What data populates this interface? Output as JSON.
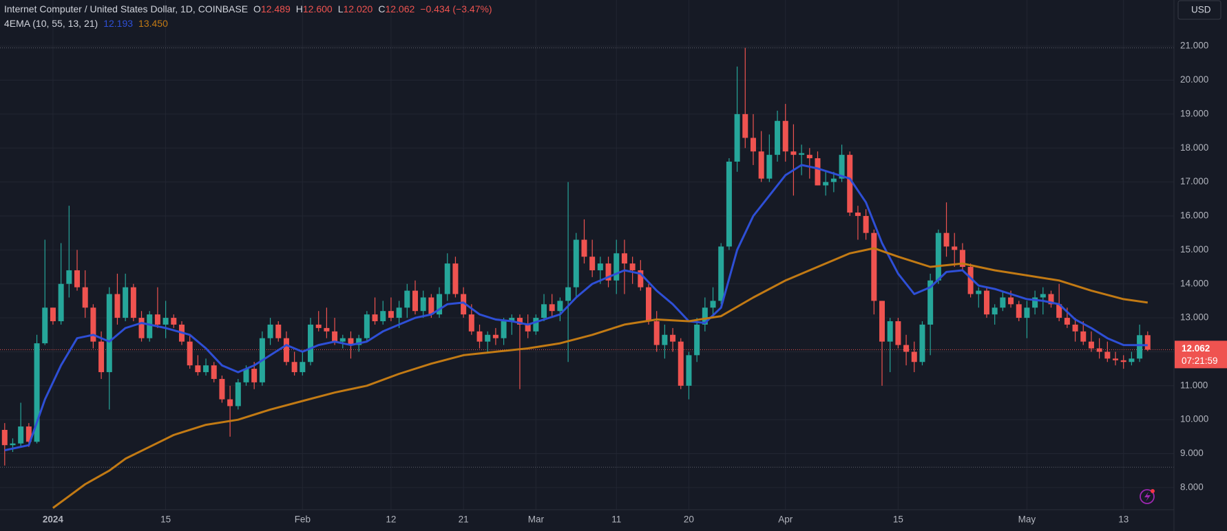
{
  "header": {
    "symbol": "Internet Computer / United States Dollar, 1D, COINBASE",
    "open_label": "O",
    "open": "12.489",
    "high_label": "H",
    "high": "12.600",
    "low_label": "L",
    "low": "12.020",
    "close_label": "C",
    "close": "12.062",
    "change": "−0.434 (−3.47%)",
    "indicator": "4EMA (10, 55, 13, 21)",
    "indicator_values": [
      "12.193",
      "13.450"
    ],
    "currency": "USD",
    "price_label": "12.062",
    "countdown": "07:21:59"
  },
  "chart_data": {
    "type": "candlestick",
    "up_color": "#26a69a",
    "down_color": "#ef5350",
    "grid": true,
    "ylim": [
      7.35,
      22.36
    ],
    "yticks": [
      {
        "value": 8,
        "label": "8.000"
      },
      {
        "value": 9,
        "label": "9.000"
      },
      {
        "value": 10,
        "label": "10.000"
      },
      {
        "value": 11,
        "label": "11.000"
      },
      {
        "value": 12,
        "label": "12.000"
      },
      {
        "value": 13,
        "label": "13.000"
      },
      {
        "value": 14,
        "label": "14.000"
      },
      {
        "value": 15,
        "label": "15.000"
      },
      {
        "value": 16,
        "label": "16.000"
      },
      {
        "value": 17,
        "label": "17.000"
      },
      {
        "value": 18,
        "label": "18.000"
      },
      {
        "value": 19,
        "label": "19.000"
      },
      {
        "value": 20,
        "label": "20.000"
      },
      {
        "value": 21,
        "label": "21.000"
      }
    ],
    "xticks": [
      {
        "value": "Jan 1",
        "label": "2024"
      },
      {
        "value": "Jan 15",
        "label": "15"
      },
      {
        "value": "Feb 1",
        "label": "Feb"
      },
      {
        "value": "Feb 12",
        "label": "12"
      },
      {
        "value": "Feb 21",
        "label": "21"
      },
      {
        "value": "Mar 1",
        "label": "Mar"
      },
      {
        "value": "Mar 11",
        "label": "11"
      },
      {
        "value": "Mar 20",
        "label": "20"
      },
      {
        "value": "Apr 1",
        "label": "Apr"
      },
      {
        "value": "Apr 15",
        "label": "15"
      },
      {
        "value": "May 1",
        "label": "May"
      },
      {
        "value": "May 13",
        "label": "13"
      }
    ],
    "hlines": [
      {
        "value": 20.95,
        "color": "#5d606b"
      },
      {
        "value": 8.6,
        "color": "#5d606b"
      },
      {
        "value": 12.062,
        "color": "#ef5350"
      }
    ],
    "categories": [
      "Dec 26",
      "Dec 27",
      "Dec 28",
      "Dec 29",
      "Dec 30",
      "Dec 31",
      "Jan 1",
      "Jan 2",
      "Jan 3",
      "Jan 4",
      "Jan 5",
      "Jan 6",
      "Jan 7",
      "Jan 8",
      "Jan 9",
      "Jan 10",
      "Jan 11",
      "Jan 12",
      "Jan 13",
      "Jan 14",
      "Jan 15",
      "Jan 16",
      "Jan 17",
      "Jan 18",
      "Jan 19",
      "Jan 20",
      "Jan 21",
      "Jan 22",
      "Jan 23",
      "Jan 24",
      "Jan 25",
      "Jan 26",
      "Jan 27",
      "Jan 28",
      "Jan 29",
      "Jan 30",
      "Jan 31",
      "Feb 1",
      "Feb 2",
      "Feb 3",
      "Feb 4",
      "Feb 5",
      "Feb 6",
      "Feb 7",
      "Feb 8",
      "Feb 9",
      "Feb 10",
      "Feb 11",
      "Feb 12",
      "Feb 13",
      "Feb 14",
      "Feb 15",
      "Feb 16",
      "Feb 17",
      "Feb 18",
      "Feb 19",
      "Feb 20",
      "Feb 21",
      "Feb 22",
      "Feb 23",
      "Feb 24",
      "Feb 25",
      "Feb 26",
      "Feb 27",
      "Feb 28",
      "Feb 29",
      "Mar 1",
      "Mar 2",
      "Mar 3",
      "Mar 4",
      "Mar 5",
      "Mar 6",
      "Mar 7",
      "Mar 8",
      "Mar 9",
      "Mar 10",
      "Mar 11",
      "Mar 12",
      "Mar 13",
      "Mar 14",
      "Mar 15",
      "Mar 16",
      "Mar 17",
      "Mar 18",
      "Mar 19",
      "Mar 20",
      "Mar 21",
      "Mar 22",
      "Mar 23",
      "Mar 24",
      "Mar 25",
      "Mar 26",
      "Mar 27",
      "Mar 28",
      "Mar 29",
      "Mar 30",
      "Mar 31",
      "Apr 1",
      "Apr 2",
      "Apr 3",
      "Apr 4",
      "Apr 5",
      "Apr 6",
      "Apr 7",
      "Apr 8",
      "Apr 9",
      "Apr 10",
      "Apr 11",
      "Apr 12",
      "Apr 13",
      "Apr 14",
      "Apr 15",
      "Apr 16",
      "Apr 17",
      "Apr 18",
      "Apr 19",
      "Apr 20",
      "Apr 21",
      "Apr 22",
      "Apr 23",
      "Apr 24",
      "Apr 25",
      "Apr 26",
      "Apr 27",
      "Apr 28",
      "Apr 29",
      "Apr 30",
      "May 1",
      "May 2",
      "May 3",
      "May 4",
      "May 5",
      "May 6",
      "May 7",
      "May 8",
      "May 9",
      "May 10",
      "May 11",
      "May 12",
      "May 13",
      "May 14",
      "May 15",
      "May 16"
    ],
    "ohlc": [
      [
        9.7,
        9.9,
        8.65,
        9.25
      ],
      [
        9.25,
        9.45,
        9.05,
        9.3
      ],
      [
        9.3,
        10.5,
        9.2,
        9.8
      ],
      [
        9.8,
        9.9,
        9.2,
        9.35
      ],
      [
        9.35,
        12.5,
        9.3,
        12.25
      ],
      [
        12.25,
        15.3,
        12.2,
        13.3
      ],
      [
        13.3,
        13.3,
        12.8,
        12.9
      ],
      [
        12.9,
        15.2,
        12.8,
        14.0
      ],
      [
        14.0,
        16.3,
        13.6,
        14.4
      ],
      [
        14.4,
        15.0,
        13.8,
        13.9
      ],
      [
        13.9,
        14.4,
        13.0,
        13.3
      ],
      [
        13.3,
        13.4,
        12.1,
        12.3
      ],
      [
        12.3,
        12.6,
        11.2,
        11.4
      ],
      [
        11.4,
        13.9,
        10.3,
        13.7
      ],
      [
        13.7,
        14.3,
        12.8,
        13.0
      ],
      [
        13.0,
        14.3,
        12.9,
        13.9
      ],
      [
        13.9,
        14.0,
        12.9,
        13.0
      ],
      [
        13.0,
        13.2,
        12.3,
        12.4
      ],
      [
        12.4,
        13.2,
        12.3,
        13.1
      ],
      [
        13.1,
        13.9,
        12.7,
        12.8
      ],
      [
        12.8,
        13.5,
        12.4,
        13.0
      ],
      [
        13.0,
        13.1,
        12.7,
        12.8
      ],
      [
        12.8,
        12.9,
        12.2,
        12.3
      ],
      [
        12.3,
        12.5,
        11.5,
        11.6
      ],
      [
        11.6,
        11.9,
        11.3,
        11.4
      ],
      [
        11.4,
        11.8,
        11.3,
        11.6
      ],
      [
        11.6,
        11.7,
        11.1,
        11.2
      ],
      [
        11.2,
        11.3,
        10.5,
        10.6
      ],
      [
        10.6,
        11.0,
        9.5,
        10.4
      ],
      [
        10.4,
        11.2,
        10.3,
        11.1
      ],
      [
        11.1,
        11.6,
        11.0,
        11.5
      ],
      [
        11.5,
        11.7,
        10.9,
        11.1
      ],
      [
        11.1,
        12.6,
        11.0,
        12.4
      ],
      [
        12.4,
        13.0,
        12.2,
        12.8
      ],
      [
        12.8,
        12.9,
        12.3,
        12.4
      ],
      [
        12.4,
        12.6,
        11.6,
        11.7
      ],
      [
        11.7,
        12.0,
        11.3,
        11.4
      ],
      [
        11.4,
        12.0,
        11.3,
        11.7
      ],
      [
        11.7,
        13.0,
        11.6,
        12.8
      ],
      [
        12.8,
        13.2,
        12.6,
        12.7
      ],
      [
        12.7,
        13.3,
        12.4,
        12.6
      ],
      [
        12.6,
        13.0,
        12.2,
        12.3
      ],
      [
        12.3,
        12.5,
        12.1,
        12.4
      ],
      [
        12.4,
        12.6,
        11.8,
        12.2
      ],
      [
        12.2,
        12.5,
        12.0,
        12.4
      ],
      [
        12.4,
        13.2,
        12.3,
        13.1
      ],
      [
        13.1,
        13.6,
        12.8,
        12.9
      ],
      [
        12.9,
        13.5,
        12.8,
        13.2
      ],
      [
        13.2,
        13.6,
        12.9,
        13.0
      ],
      [
        13.0,
        13.5,
        12.7,
        13.3
      ],
      [
        13.3,
        14.0,
        13.0,
        13.8
      ],
      [
        13.8,
        14.1,
        13.1,
        13.2
      ],
      [
        13.2,
        13.8,
        13.0,
        13.6
      ],
      [
        13.6,
        13.7,
        13.0,
        13.1
      ],
      [
        13.1,
        13.9,
        13.0,
        13.7
      ],
      [
        13.7,
        14.9,
        13.5,
        14.6
      ],
      [
        14.6,
        14.8,
        13.6,
        13.7
      ],
      [
        13.7,
        13.9,
        13.0,
        13.1
      ],
      [
        13.1,
        13.4,
        12.5,
        12.6
      ],
      [
        12.6,
        12.8,
        12.1,
        12.3
      ],
      [
        12.3,
        12.6,
        12.0,
        12.5
      ],
      [
        12.5,
        12.7,
        12.2,
        12.4
      ],
      [
        12.4,
        13.0,
        12.2,
        12.9
      ],
      [
        12.9,
        13.1,
        12.5,
        13.0
      ],
      [
        13.0,
        13.1,
        10.9,
        12.8
      ],
      [
        12.8,
        13.1,
        12.4,
        12.6
      ],
      [
        12.6,
        13.1,
        12.5,
        13.0
      ],
      [
        13.0,
        13.7,
        12.9,
        13.4
      ],
      [
        13.4,
        13.7,
        13.0,
        13.2
      ],
      [
        13.2,
        13.6,
        12.9,
        13.5
      ],
      [
        13.5,
        17.0,
        11.7,
        13.9
      ],
      [
        13.9,
        15.5,
        13.6,
        15.3
      ],
      [
        15.3,
        15.9,
        14.6,
        14.8
      ],
      [
        14.8,
        15.3,
        14.2,
        14.4
      ],
      [
        14.4,
        14.8,
        14.0,
        14.6
      ],
      [
        14.6,
        14.8,
        13.9,
        14.1
      ],
      [
        14.1,
        15.3,
        13.7,
        14.9
      ],
      [
        14.9,
        15.3,
        13.7,
        14.6
      ],
      [
        14.6,
        14.8,
        14.0,
        14.4
      ],
      [
        14.4,
        14.7,
        13.8,
        13.9
      ],
      [
        13.9,
        14.0,
        12.8,
        12.9
      ],
      [
        12.9,
        13.2,
        12.0,
        12.2
      ],
      [
        12.2,
        12.8,
        11.8,
        12.5
      ],
      [
        12.5,
        12.7,
        12.0,
        12.3
      ],
      [
        12.3,
        12.4,
        10.9,
        11.0
      ],
      [
        11.0,
        12.0,
        10.6,
        11.9
      ],
      [
        11.9,
        13.0,
        11.7,
        12.8
      ],
      [
        12.8,
        13.6,
        12.6,
        13.3
      ],
      [
        13.3,
        13.9,
        13.1,
        13.5
      ],
      [
        13.5,
        15.2,
        13.4,
        15.1
      ],
      [
        15.1,
        17.7,
        15.0,
        17.6
      ],
      [
        17.6,
        20.4,
        17.3,
        19.0
      ],
      [
        19.0,
        20.95,
        18.0,
        18.3
      ],
      [
        18.3,
        19.0,
        17.5,
        17.9
      ],
      [
        17.9,
        18.5,
        17.0,
        17.1
      ],
      [
        17.1,
        18.4,
        17.0,
        17.8
      ],
      [
        17.8,
        19.1,
        17.6,
        18.8
      ],
      [
        18.8,
        19.3,
        17.6,
        17.9
      ],
      [
        17.9,
        18.7,
        16.6,
        17.8
      ],
      [
        17.8,
        18.1,
        17.2,
        17.85
      ],
      [
        17.8,
        18.0,
        17.1,
        17.7
      ],
      [
        17.7,
        17.9,
        16.9,
        16.9
      ],
      [
        16.9,
        17.3,
        16.6,
        17.0
      ],
      [
        17.0,
        17.3,
        16.7,
        17.1
      ],
      [
        17.1,
        18.1,
        17.0,
        17.8
      ],
      [
        17.8,
        17.9,
        16.0,
        16.1
      ],
      [
        16.1,
        16.3,
        15.3,
        16.0
      ],
      [
        16.0,
        16.2,
        15.3,
        15.5
      ],
      [
        15.5,
        15.6,
        13.1,
        13.5
      ],
      [
        13.5,
        13.5,
        11.0,
        12.3
      ],
      [
        12.3,
        13.0,
        11.4,
        12.9
      ],
      [
        12.9,
        13.0,
        12.1,
        12.2
      ],
      [
        12.2,
        12.5,
        11.6,
        12.0
      ],
      [
        12.0,
        12.3,
        11.4,
        11.7
      ],
      [
        11.7,
        12.9,
        11.6,
        12.8
      ],
      [
        12.8,
        14.3,
        11.9,
        14.1
      ],
      [
        14.1,
        15.6,
        14.0,
        15.5
      ],
      [
        15.5,
        16.4,
        14.8,
        15.1
      ],
      [
        15.1,
        15.5,
        14.5,
        15.0
      ],
      [
        15.0,
        15.2,
        14.4,
        14.5
      ],
      [
        14.5,
        14.6,
        13.6,
        13.7
      ],
      [
        13.7,
        13.9,
        13.3,
        13.8
      ],
      [
        13.8,
        13.9,
        13.0,
        13.1
      ],
      [
        13.1,
        13.4,
        12.8,
        13.3
      ],
      [
        13.3,
        13.8,
        13.2,
        13.6
      ],
      [
        13.6,
        13.8,
        13.3,
        13.4
      ],
      [
        13.4,
        13.5,
        12.9,
        13.0
      ],
      [
        13.0,
        13.5,
        12.4,
        13.3
      ],
      [
        13.3,
        13.8,
        13.1,
        13.6
      ],
      [
        13.6,
        13.9,
        13.1,
        13.7
      ],
      [
        13.7,
        13.8,
        13.3,
        13.4
      ],
      [
        13.4,
        14.0,
        12.9,
        13.0
      ],
      [
        13.0,
        13.3,
        12.7,
        12.8
      ],
      [
        12.8,
        13.0,
        12.3,
        12.6
      ],
      [
        12.6,
        12.9,
        12.2,
        12.3
      ],
      [
        12.3,
        12.6,
        12.0,
        12.1
      ],
      [
        12.1,
        12.4,
        11.8,
        12.0
      ],
      [
        12.0,
        12.3,
        11.7,
        11.8
      ],
      [
        11.8,
        12.0,
        11.6,
        11.75
      ],
      [
        11.75,
        11.9,
        11.5,
        11.7
      ],
      [
        11.7,
        12.0,
        11.6,
        11.8
      ],
      [
        11.8,
        12.8,
        11.7,
        12.489
      ],
      [
        12.489,
        12.6,
        12.02,
        12.062
      ]
    ],
    "series": [
      {
        "color": "#2e4fd6",
        "x": [
          "Dec 26",
          "Dec 29",
          "Dec 31",
          "Jan 2",
          "Jan 4",
          "Jan 6",
          "Jan 8",
          "Jan 10",
          "Jan 12",
          "Jan 15",
          "Jan 18",
          "Jan 20",
          "Jan 22",
          "Jan 24",
          "Jan 26",
          "Jan 28",
          "Jan 30",
          "Feb 1",
          "Feb 3",
          "Feb 5",
          "Feb 7",
          "Feb 9",
          "Feb 11",
          "Feb 13",
          "Feb 15",
          "Feb 17",
          "Feb 19",
          "Feb 21",
          "Feb 23",
          "Feb 25",
          "Feb 27",
          "Feb 29",
          "Mar 2",
          "Mar 4",
          "Mar 6",
          "Mar 8",
          "Mar 10",
          "Mar 12",
          "Mar 14",
          "Mar 16",
          "Mar 18",
          "Mar 20",
          "Mar 22",
          "Mar 24",
          "Mar 26",
          "Mar 28",
          "Mar 30",
          "Apr 1",
          "Apr 3",
          "Apr 5",
          "Apr 7",
          "Apr 9",
          "Apr 11",
          "Apr 13",
          "Apr 15",
          "Apr 17",
          "Apr 19",
          "Apr 21",
          "Apr 23",
          "Apr 25",
          "Apr 27",
          "Apr 29",
          "May 1",
          "May 3",
          "May 5",
          "May 7",
          "May 9",
          "May 11",
          "May 13",
          "May 16"
        ],
        "values": [
          9.1,
          9.25,
          10.6,
          11.6,
          12.4,
          12.5,
          12.3,
          12.7,
          12.85,
          12.7,
          12.5,
          12.1,
          11.6,
          11.4,
          11.6,
          11.9,
          12.2,
          12.0,
          12.2,
          12.3,
          12.2,
          12.3,
          12.6,
          12.8,
          13.0,
          13.1,
          13.4,
          13.45,
          13.1,
          12.95,
          12.9,
          12.8,
          12.95,
          13.1,
          13.6,
          14.0,
          14.2,
          14.4,
          14.3,
          13.8,
          13.4,
          12.9,
          12.85,
          13.3,
          15.0,
          16.0,
          16.6,
          17.2,
          17.5,
          17.4,
          17.25,
          17.1,
          16.4,
          15.2,
          14.3,
          13.7,
          13.9,
          14.35,
          14.4,
          13.95,
          13.85,
          13.7,
          13.55,
          13.5,
          13.4,
          12.95,
          12.7,
          12.4,
          12.2,
          12.193
        ]
      },
      {
        "color": "#c27a14",
        "x": [
          "Jan 1",
          "Jan 3",
          "Jan 5",
          "Jan 8",
          "Jan 10",
          "Jan 13",
          "Jan 16",
          "Jan 20",
          "Jan 24",
          "Jan 28",
          "Feb 1",
          "Feb 5",
          "Feb 9",
          "Feb 13",
          "Feb 17",
          "Feb 21",
          "Feb 25",
          "Feb 29",
          "Mar 4",
          "Mar 8",
          "Mar 12",
          "Mar 16",
          "Mar 20",
          "Mar 24",
          "Mar 28",
          "Apr 1",
          "Apr 5",
          "Apr 9",
          "Apr 12",
          "Apr 15",
          "Apr 19",
          "Apr 23",
          "Apr 27",
          "May 1",
          "May 5",
          "May 9",
          "May 13",
          "May 16"
        ],
        "values": [
          7.4,
          7.75,
          8.1,
          8.5,
          8.85,
          9.2,
          9.55,
          9.85,
          10.0,
          10.3,
          10.55,
          10.8,
          11.0,
          11.35,
          11.65,
          11.9,
          12.0,
          12.1,
          12.25,
          12.5,
          12.8,
          12.95,
          12.9,
          13.05,
          13.6,
          14.1,
          14.5,
          14.9,
          15.05,
          14.8,
          14.5,
          14.6,
          14.4,
          14.25,
          14.1,
          13.8,
          13.55,
          13.45
        ]
      }
    ]
  }
}
